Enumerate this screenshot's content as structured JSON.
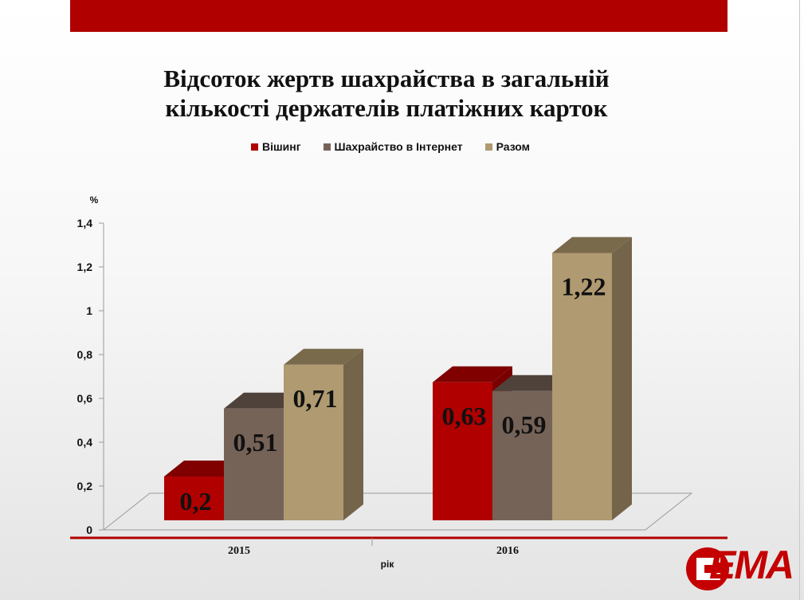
{
  "title_line1": "Відсоток жертв шахрайства в загальній",
  "title_line2": "кількості держателів платіжних карток",
  "logo_text": "ЕМА",
  "chart_data": {
    "type": "bar",
    "categories": [
      "2015",
      "2016"
    ],
    "series": [
      {
        "name": "Вішинг",
        "values": [
          0.2,
          0.63
        ],
        "labels": [
          "0,2",
          "0,63"
        ],
        "color": "#b00000",
        "top_color": "#800000",
        "side_color": "#7a0000"
      },
      {
        "name": "Шахрайство в Інтернет",
        "values": [
          0.51,
          0.59
        ],
        "labels": [
          "0,51",
          "0,59"
        ],
        "color": "#766358",
        "top_color": "#4f423b",
        "side_color": "#4f423b"
      },
      {
        "name": "Разом",
        "values": [
          0.71,
          1.22
        ],
        "labels": [
          "0,71",
          "1,22"
        ],
        "color": "#b09a71",
        "top_color": "#7a6a4c",
        "side_color": "#74654a"
      }
    ],
    "y_ticks": [
      "0",
      "0,2",
      "0,4",
      "0,6",
      "0,8",
      "1",
      "1,2",
      "1,4"
    ],
    "ylim": [
      0,
      1.4
    ],
    "ylabel": "%",
    "xlabel": "рік",
    "legend_position": "top",
    "axis_color": "#b00000"
  }
}
